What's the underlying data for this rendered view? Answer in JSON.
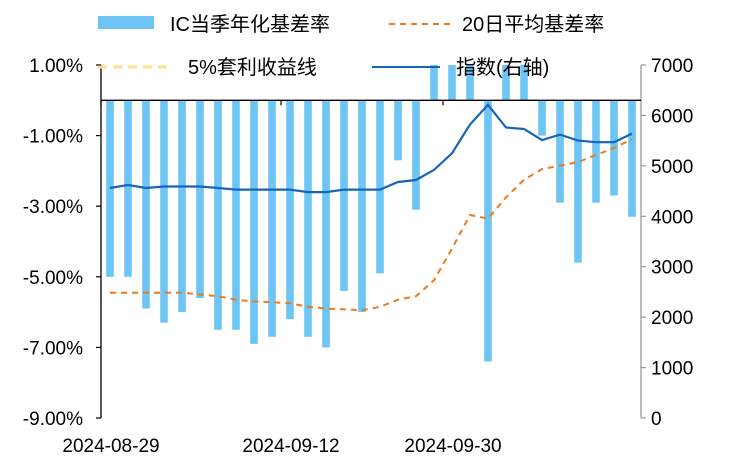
{
  "chart_data": {
    "type": "bar",
    "x_ticks": [
      "2024-08-29",
      "2024-09-12",
      "2024-09-30"
    ],
    "x_tick_indices": [
      0,
      10,
      19
    ],
    "y_left": {
      "ticks": [
        "1.00%",
        "-1.00%",
        "-3.00%",
        "-5.00%",
        "-7.00%",
        "-9.00%"
      ],
      "lim": [
        -9,
        1
      ]
    },
    "y_right": {
      "ticks": [
        "7000",
        "6000",
        "5000",
        "4000",
        "3000",
        "2000",
        "1000",
        "0"
      ],
      "lim": [
        0,
        7000
      ]
    },
    "legend": [
      {
        "key": "ic_basis",
        "label": "IC当季年化基差率"
      },
      {
        "key": "ma20",
        "label": "20日平均基差率"
      },
      {
        "key": "arb",
        "label": "5%套利收益线"
      },
      {
        "key": "index",
        "label": "指数(右轴)"
      }
    ],
    "series": [
      {
        "key": "ic_basis",
        "name": "IC当季年化基差率",
        "type": "bar",
        "axis": "left",
        "color": "#6CC5F5",
        "values": [
          -5.0,
          -5.0,
          -5.9,
          -6.3,
          -6.0,
          -5.6,
          -6.5,
          -6.5,
          -6.9,
          -6.7,
          -6.2,
          -6.7,
          -7.0,
          -5.4,
          -6.0,
          -4.9,
          -1.7,
          -3.1,
          1.0,
          1.0,
          1.0,
          -7.4,
          1.0,
          1.0,
          -1.0,
          -2.9,
          -4.6,
          -2.9,
          -2.7,
          -3.3
        ]
      },
      {
        "key": "ma20",
        "name": "20日平均基差率",
        "type": "line",
        "axis": "left",
        "color": "#F07A1A",
        "dash": "dashed",
        "values": [
          -5.45,
          -5.45,
          -5.45,
          -5.45,
          -5.45,
          -5.5,
          -5.55,
          -5.65,
          -5.7,
          -5.72,
          -5.75,
          -5.85,
          -5.9,
          -5.92,
          -5.95,
          -5.85,
          -5.65,
          -5.55,
          -5.1,
          -4.2,
          -3.25,
          -3.35,
          -2.75,
          -2.25,
          -1.95,
          -1.85,
          -1.75,
          -1.55,
          -1.35,
          -1.1
        ]
      },
      {
        "key": "arb",
        "name": "5%套利收益线",
        "type": "line",
        "axis": "left",
        "color": "#FFE08A",
        "dash": "dashed",
        "values": []
      },
      {
        "key": "index",
        "name": "指数(右轴)",
        "type": "line",
        "axis": "right",
        "color": "#1565B8",
        "values": [
          4560,
          4620,
          4560,
          4590,
          4590,
          4590,
          4560,
          4530,
          4530,
          4530,
          4530,
          4480,
          4480,
          4530,
          4530,
          4530,
          4680,
          4720,
          4920,
          5250,
          5820,
          6210,
          5760,
          5730,
          5510,
          5620,
          5500,
          5470,
          5470,
          5640
        ]
      }
    ]
  }
}
